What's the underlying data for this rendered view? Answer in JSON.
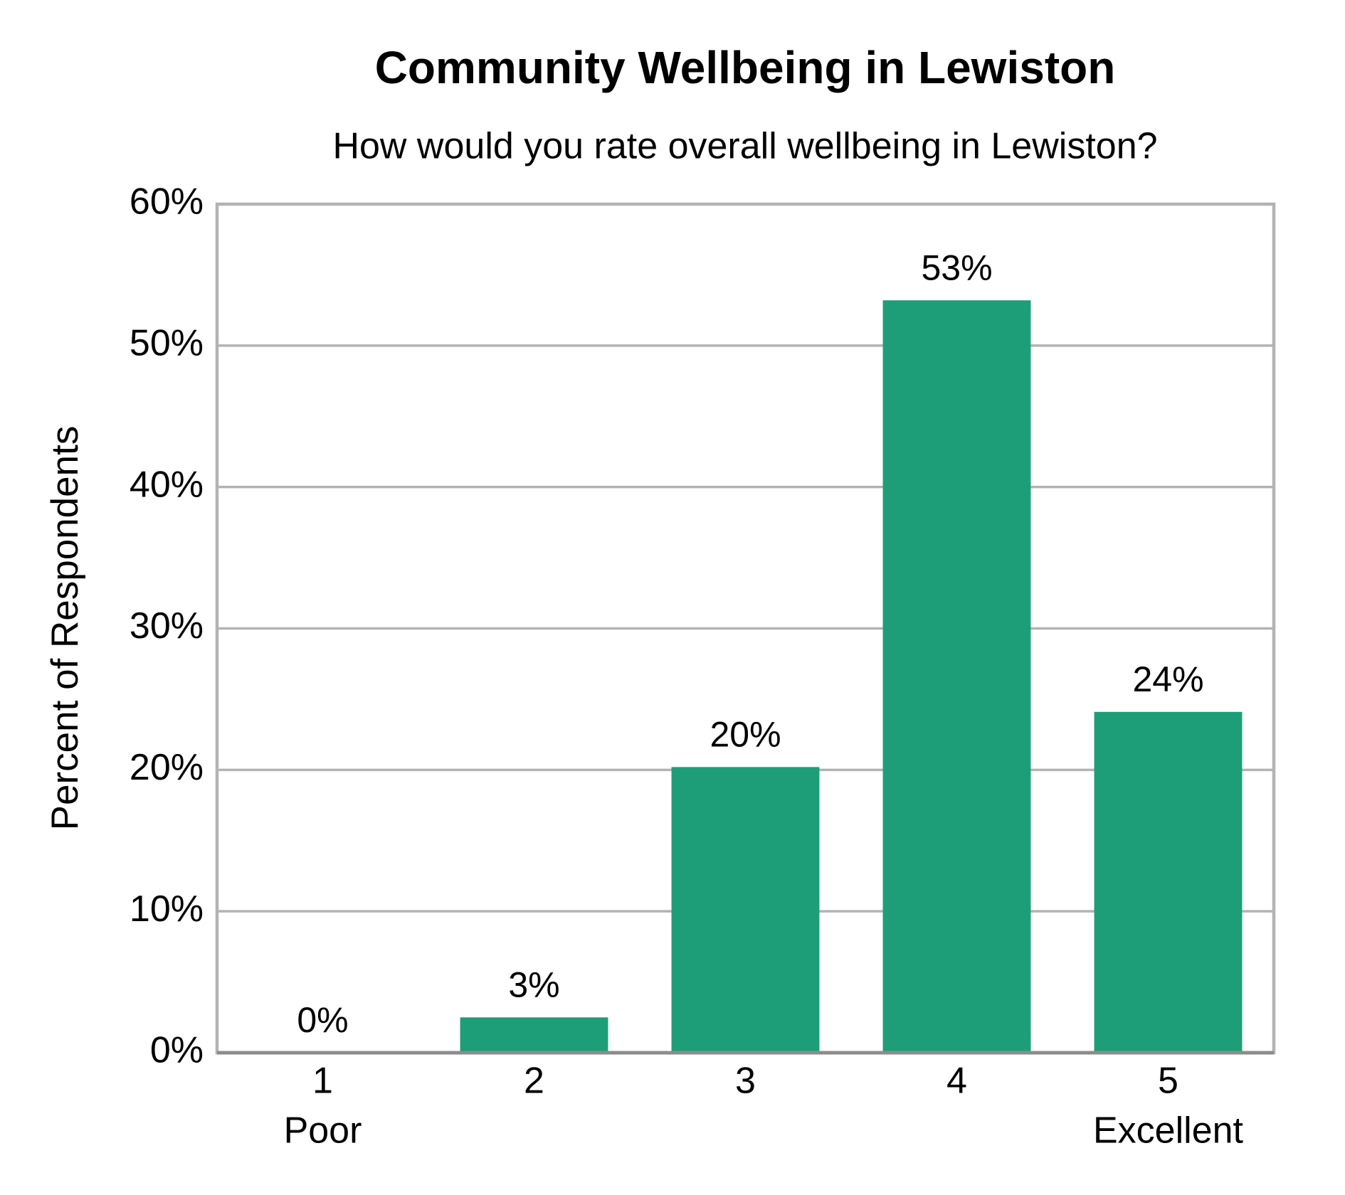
{
  "chart_data": {
    "type": "bar",
    "title": "Community Wellbeing in Lewiston",
    "subtitle": "How would you rate overall wellbeing in Lewiston?",
    "y_label": "Percent of Respondents",
    "categories": [
      "1",
      "2",
      "3",
      "4",
      "5"
    ],
    "category_sublabels": [
      "Poor",
      null,
      null,
      null,
      "Excellent"
    ],
    "values": [
      0,
      2.5,
      20.2,
      53.2,
      24.1
    ],
    "value_labels": [
      "0%",
      "3%",
      "20%",
      "53%",
      "24%"
    ],
    "color": "#1e9e78",
    "ylim": [
      0,
      60
    ],
    "yticks": [
      {
        "value": 0,
        "label": "0%"
      },
      {
        "value": 10,
        "label": "10%"
      },
      {
        "value": 20,
        "label": "20%"
      },
      {
        "value": 30,
        "label": "30%"
      },
      {
        "value": 40,
        "label": "40%"
      },
      {
        "value": 50,
        "label": "50%"
      },
      {
        "value": 60,
        "label": "60%"
      }
    ],
    "grid": true
  }
}
